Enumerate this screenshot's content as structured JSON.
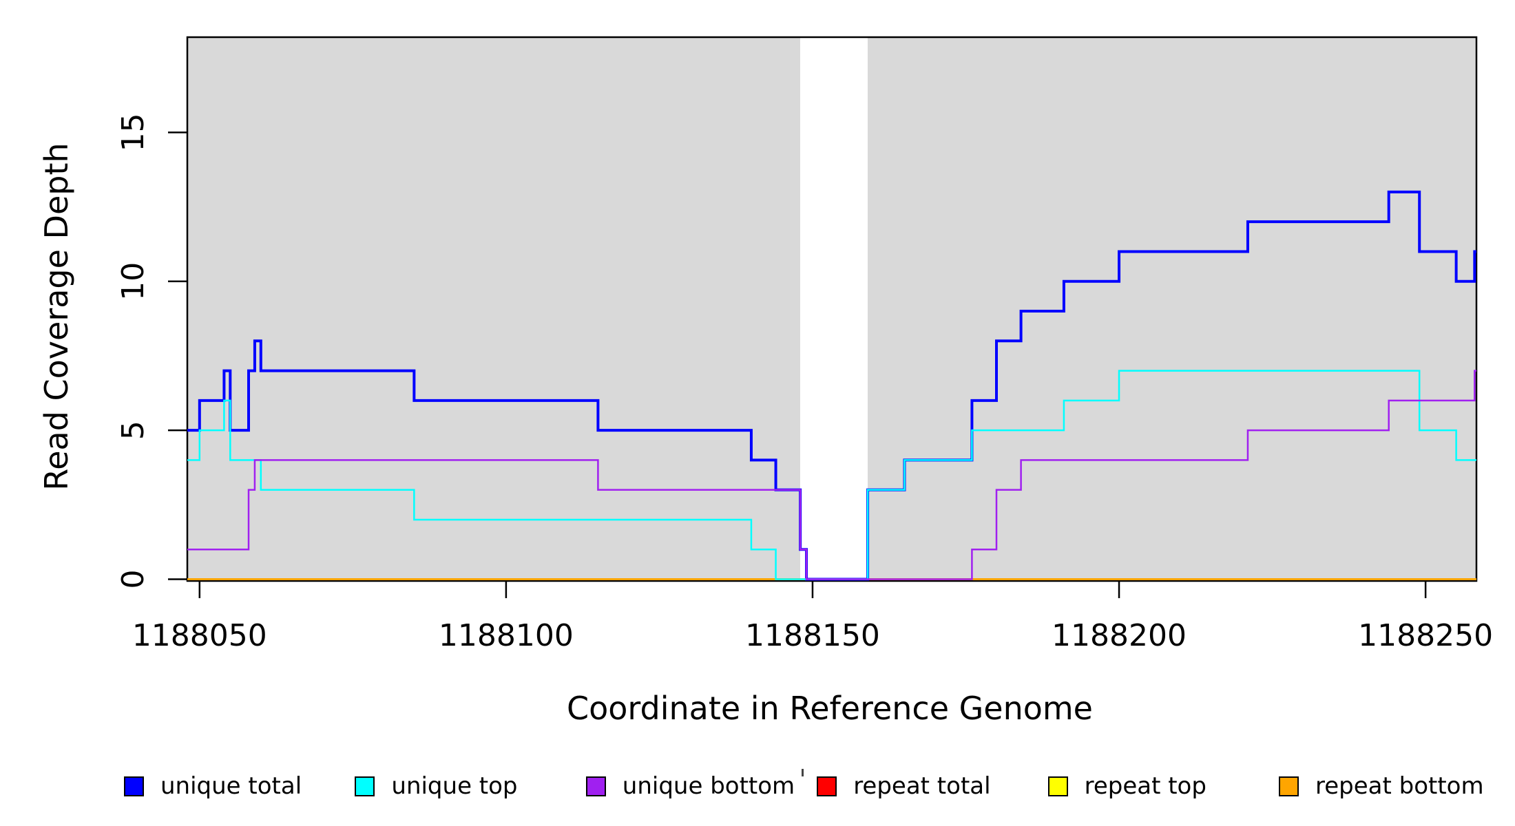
{
  "figure": {
    "background_color": "#FFFFFF",
    "plot_region_color": "#FFFFFF"
  },
  "chart_data": {
    "type": "line",
    "subtype": "step-coverage",
    "title": "",
    "xlabel": "Coordinate in Reference Genome",
    "ylabel": "Read Coverage Depth",
    "x_range": [
      1188048,
      1188258.3
    ],
    "y_range": [
      0,
      18.19
    ],
    "grid": "off",
    "x_ticks": [
      {
        "value": 1188050,
        "label": "1188050"
      },
      {
        "value": 1188100,
        "label": "1188100"
      },
      {
        "value": 1188150,
        "label": "1188150"
      },
      {
        "value": 1188200,
        "label": "1188200"
      },
      {
        "value": 1188250,
        "label": "1188250"
      }
    ],
    "y_ticks": [
      {
        "value": 0,
        "label": "0"
      },
      {
        "value": 5,
        "label": "5"
      },
      {
        "value": 10,
        "label": "10"
      },
      {
        "value": 15,
        "label": "15"
      }
    ],
    "background_regions": [
      {
        "name": "unique-region-left",
        "x_start": 1188048,
        "x_end": 1188148,
        "color": "#D9D9D9"
      },
      {
        "name": "unique-region-right",
        "x_start": 1188159,
        "x_end": 1188258.3,
        "color": "#D9D9D9"
      }
    ],
    "repeat_gap_region": {
      "x_start": 1188148,
      "x_end": 1188159,
      "color": "#FFFFFF"
    },
    "series": [
      {
        "name": "repeat total",
        "color": "#FF0000",
        "line_width": 3,
        "steps": [
          [
            1188048,
            0
          ]
        ]
      },
      {
        "name": "repeat top",
        "color": "#FFFF00",
        "line_width": 3,
        "steps": [
          [
            1188048,
            0
          ]
        ]
      },
      {
        "name": "repeat bottom",
        "color": "#FFA500",
        "line_width": 3,
        "steps": [
          [
            1188048,
            0
          ]
        ]
      },
      {
        "name": "unique total",
        "color": "#0000FF",
        "line_width": 4,
        "steps": [
          [
            1188048,
            5
          ],
          [
            1188050,
            6
          ],
          [
            1188054,
            7
          ],
          [
            1188055,
            5
          ],
          [
            1188058,
            7
          ],
          [
            1188059,
            8
          ],
          [
            1188060,
            7
          ],
          [
            1188085,
            6
          ],
          [
            1188115,
            5
          ],
          [
            1188140,
            4
          ],
          [
            1188144,
            3
          ],
          [
            1188148,
            1
          ],
          [
            1188149,
            0
          ],
          [
            1188159,
            3
          ],
          [
            1188165,
            4
          ],
          [
            1188176,
            6
          ],
          [
            1188180,
            8
          ],
          [
            1188184,
            9
          ],
          [
            1188191,
            10
          ],
          [
            1188200,
            11
          ],
          [
            1188221,
            12
          ],
          [
            1188244,
            13
          ],
          [
            1188249,
            11
          ],
          [
            1188255,
            10
          ],
          [
            1188258,
            11
          ]
        ]
      },
      {
        "name": "unique top",
        "color": "#00FFFF",
        "line_width": 2.5,
        "steps": [
          [
            1188048,
            4
          ],
          [
            1188050,
            5
          ],
          [
            1188054,
            6
          ],
          [
            1188055,
            4
          ],
          [
            1188060,
            3
          ],
          [
            1188085,
            2
          ],
          [
            1188140,
            1
          ],
          [
            1188144,
            0
          ],
          [
            1188159,
            3
          ],
          [
            1188165,
            4
          ],
          [
            1188176,
            5
          ],
          [
            1188191,
            6
          ],
          [
            1188200,
            7
          ],
          [
            1188249,
            5
          ],
          [
            1188255,
            4
          ]
        ]
      },
      {
        "name": "unique bottom",
        "color": "#A020F0",
        "line_width": 2.5,
        "steps": [
          [
            1188048,
            1
          ],
          [
            1188058,
            3
          ],
          [
            1188059,
            4
          ],
          [
            1188115,
            3
          ],
          [
            1188148,
            1
          ],
          [
            1188149,
            0
          ],
          [
            1188176,
            1
          ],
          [
            1188180,
            3
          ],
          [
            1188184,
            4
          ],
          [
            1188221,
            5
          ],
          [
            1188244,
            6
          ],
          [
            1188258,
            7
          ]
        ]
      }
    ]
  },
  "legend": {
    "items": [
      {
        "label": "unique total",
        "color": "#0000FF"
      },
      {
        "label": "unique top",
        "color": "#00FFFF"
      },
      {
        "label": "unique bottom",
        "color": "#A020F0"
      },
      {
        "label": "repeat total",
        "color": "#FF0000"
      },
      {
        "label": "repeat top",
        "color": "#FFFF00"
      },
      {
        "label": "repeat bottom",
        "color": "#FFA500"
      }
    ]
  }
}
